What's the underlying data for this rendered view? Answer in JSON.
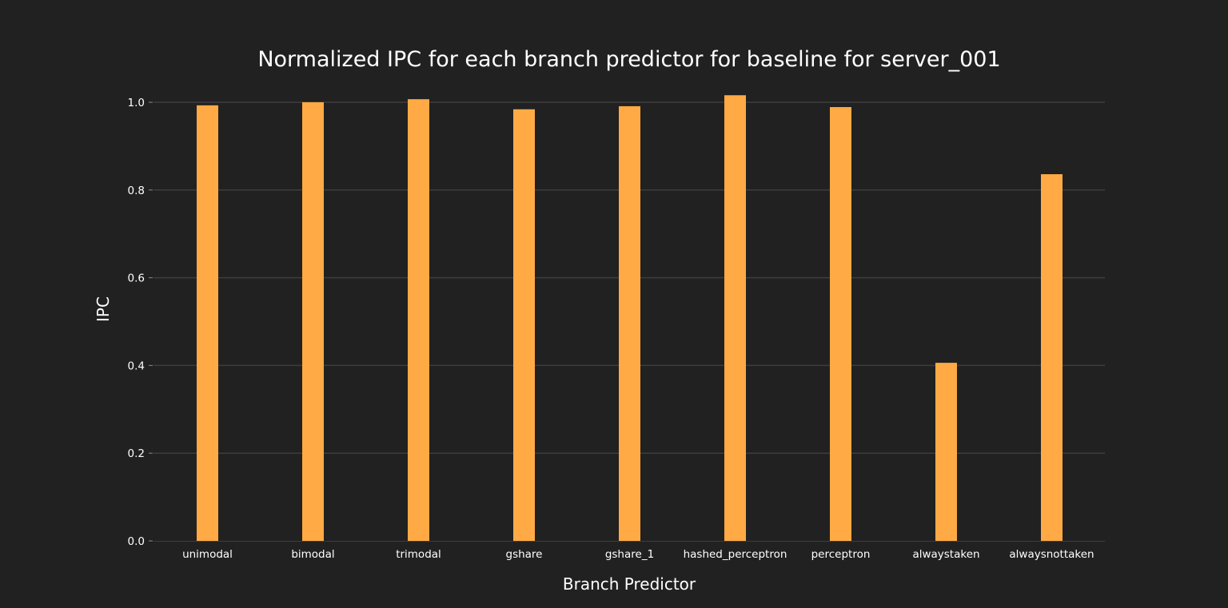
{
  "chart_data": {
    "type": "bar",
    "title": "Normalized IPC for each branch predictor for baseline for server_001",
    "xlabel": "Branch Predictor",
    "ylabel": "IPC",
    "categories": [
      "unimodal",
      "bimodal",
      "trimodal",
      "gshare",
      "gshare_1",
      "hashed_perceptron",
      "perceptron",
      "alwaystaken",
      "alwaysnottaken"
    ],
    "values": [
      0.993,
      1.0,
      1.007,
      0.984,
      0.991,
      1.016,
      0.989,
      0.406,
      0.836
    ],
    "ylim": [
      0,
      1.0
    ],
    "yticks": [
      "0.0",
      "0.2",
      "0.4",
      "0.6",
      "0.8",
      "1.0"
    ],
    "grid": true,
    "legend": "none",
    "colors": {
      "background": "#212121",
      "bar": "#ffaa44",
      "text": "#ffffff",
      "grid": "#3d3d3d"
    }
  }
}
